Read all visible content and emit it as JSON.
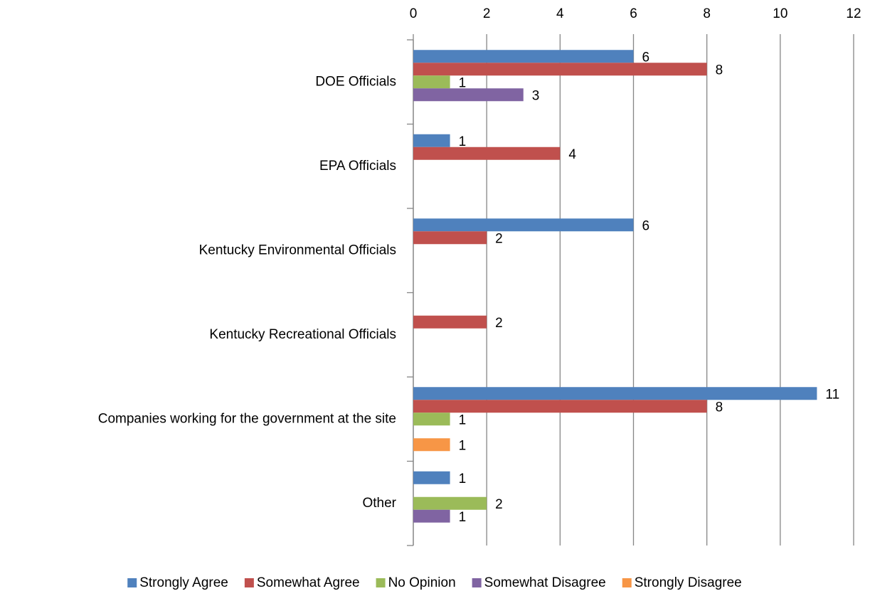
{
  "chart_data": {
    "type": "bar",
    "orientation": "horizontal",
    "categories": [
      "DOE Officials",
      "EPA Officials",
      "Kentucky Environmental Officials",
      "Kentucky Recreational Officials",
      "Companies working for the government at the site",
      "Other"
    ],
    "series": [
      {
        "name": "Strongly Agree",
        "color": "#4f81bd",
        "values": [
          6,
          1,
          6,
          null,
          11,
          1
        ]
      },
      {
        "name": "Somewhat Agree",
        "color": "#c0504d",
        "values": [
          8,
          4,
          2,
          2,
          8,
          null
        ]
      },
      {
        "name": "No Opinion",
        "color": "#9bbb59",
        "values": [
          1,
          null,
          null,
          null,
          1,
          2
        ]
      },
      {
        "name": "Somewhat Disagree",
        "color": "#8064a2",
        "values": [
          3,
          null,
          null,
          null,
          null,
          1
        ]
      },
      {
        "name": "Strongly Disagree",
        "color": "#f79646",
        "values": [
          null,
          null,
          null,
          null,
          1,
          null
        ]
      }
    ],
    "xlim": [
      0,
      12
    ],
    "xticks": [
      0,
      2,
      4,
      6,
      8,
      10,
      12
    ],
    "grid": true,
    "legend": "bottom"
  }
}
